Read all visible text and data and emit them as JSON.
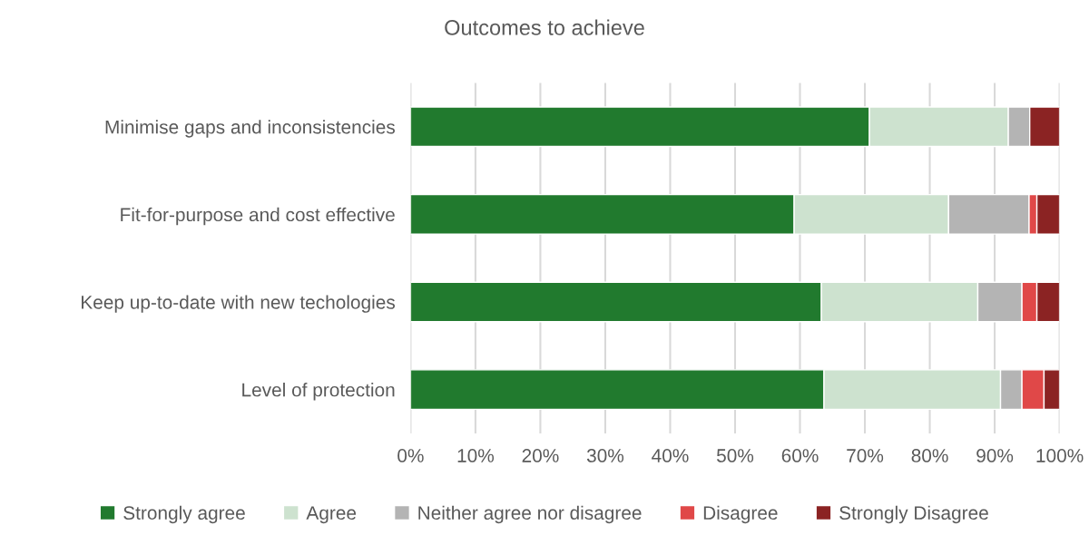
{
  "chart_data": {
    "type": "bar",
    "orientation": "horizontal",
    "stacked": true,
    "title": "Outcomes to achieve",
    "categories": [
      "Minimise gaps and inconsistencies",
      "Fit-for-purpose and cost effective",
      "Keep up-to-date with new techologies",
      "Level of protection"
    ],
    "series": [
      {
        "name": "Strongly agree",
        "color": "#217a2e",
        "values": [
          70.7,
          59.1,
          63.3,
          63.7
        ]
      },
      {
        "name": "Agree",
        "color": "#cde2cf",
        "values": [
          21.4,
          23.8,
          24.1,
          27.2
        ]
      },
      {
        "name": "Neither agree nor disagree",
        "color": "#b4b4b4",
        "values": [
          3.3,
          12.4,
          6.8,
          3.3
        ]
      },
      {
        "name": "Disagree",
        "color": "#e04848",
        "values": [
          0,
          1.2,
          2.3,
          3.4
        ]
      },
      {
        "name": "Strongly Disagree",
        "color": "#8b2323",
        "values": [
          4.6,
          3.5,
          3.5,
          2.4
        ]
      }
    ],
    "xlim": [
      0,
      100
    ],
    "xticks": [
      {
        "value": 0,
        "label": "0%"
      },
      {
        "value": 10,
        "label": "10%"
      },
      {
        "value": 20,
        "label": "20%"
      },
      {
        "value": 30,
        "label": "30%"
      },
      {
        "value": 40,
        "label": "40%"
      },
      {
        "value": 50,
        "label": "50%"
      },
      {
        "value": 60,
        "label": "60%"
      },
      {
        "value": 70,
        "label": "70%"
      },
      {
        "value": 80,
        "label": "80%"
      },
      {
        "value": 90,
        "label": "90%"
      },
      {
        "value": 100,
        "label": "100%"
      }
    ],
    "grid": "x",
    "legend": "bottom"
  }
}
